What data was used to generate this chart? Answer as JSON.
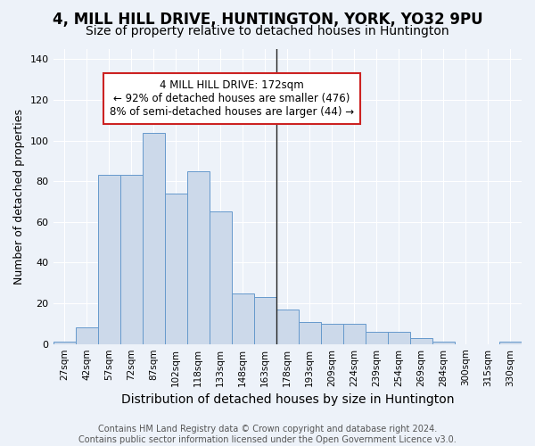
{
  "title": "4, MILL HILL DRIVE, HUNTINGTON, YORK, YO32 9PU",
  "subtitle": "Size of property relative to detached houses in Huntington",
  "xlabel": "Distribution of detached houses by size in Huntington",
  "ylabel": "Number of detached properties",
  "bin_labels": [
    "27sqm",
    "42sqm",
    "57sqm",
    "72sqm",
    "87sqm",
    "102sqm",
    "118sqm",
    "133sqm",
    "148sqm",
    "163sqm",
    "178sqm",
    "193sqm",
    "209sqm",
    "224sqm",
    "239sqm",
    "254sqm",
    "269sqm",
    "284sqm",
    "300sqm",
    "315sqm",
    "330sqm"
  ],
  "bar_values": [
    1,
    8,
    83,
    83,
    104,
    74,
    85,
    65,
    25,
    23,
    17,
    11,
    10,
    10,
    6,
    6,
    3,
    1,
    0,
    0,
    1
  ],
  "bar_color": "#ccd9ea",
  "bar_edge_color": "#6699cc",
  "annotation_text": "4 MILL HILL DRIVE: 172sqm\n← 92% of detached houses are smaller (476)\n8% of semi-detached houses are larger (44) →",
  "annotation_box_color": "#ffffff",
  "annotation_box_edge_color": "#cc2222",
  "vline_index": 10,
  "ylim": [
    0,
    145
  ],
  "yticks": [
    0,
    20,
    40,
    60,
    80,
    100,
    120,
    140
  ],
  "bg_color": "#edf2f9",
  "grid_color": "#ffffff",
  "footer_text": "Contains HM Land Registry data © Crown copyright and database right 2024.\nContains public sector information licensed under the Open Government Licence v3.0.",
  "title_fontsize": 12,
  "subtitle_fontsize": 10,
  "ylabel_fontsize": 9,
  "xlabel_fontsize": 10,
  "footer_fontsize": 7
}
